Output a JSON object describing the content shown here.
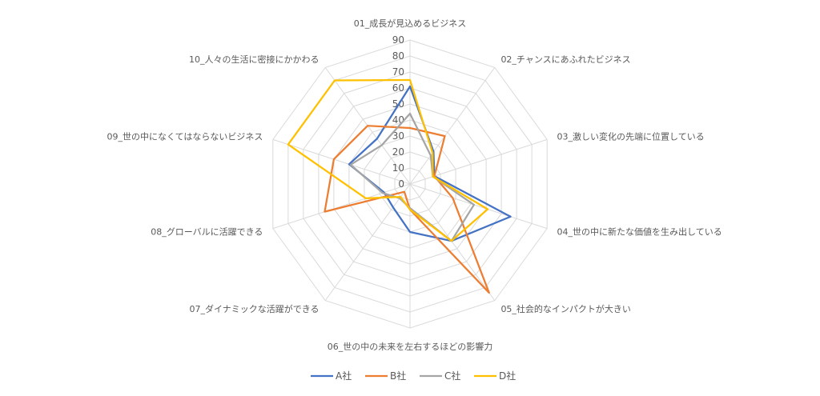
{
  "chart_data": {
    "type": "radar",
    "title": "",
    "categories": [
      "01_成長が見込めるビジネス",
      "02_チャンスにあふれたビジネス",
      "03_激しい変化の先端に位置している",
      "04_世の中に新たな価値を生み出している",
      "05_社会的なインパクトが大きい",
      "06_世の中の未来を左右するほどの影響力",
      "07_ダイナミックな活躍ができる",
      "08_グローバルに活躍できる",
      "09_世の中になくてはならないビジネス",
      "10_人々の生活に密接にかかわる"
    ],
    "ticks": [
      "0",
      "10",
      "20",
      "30",
      "40",
      "50",
      "60",
      "70",
      "80",
      "90"
    ],
    "rmax": 90,
    "grid": true,
    "legend_position": "bottom",
    "series": [
      {
        "name": "A社",
        "color": "#4472C4",
        "values": [
          61,
          25,
          16,
          66,
          44,
          30,
          18,
          17,
          40,
          35
        ]
      },
      {
        "name": "B社",
        "color": "#ED7D31",
        "values": [
          35,
          37,
          16,
          28,
          84,
          16,
          6,
          56,
          50,
          45
        ]
      },
      {
        "name": "C社",
        "color": "#A5A5A5",
        "values": [
          44,
          22,
          15,
          42,
          44,
          15,
          11,
          18,
          39,
          30
        ]
      },
      {
        "name": "D社",
        "color": "#FFC000",
        "values": [
          65,
          24,
          15,
          51,
          44,
          16,
          10,
          29,
          80,
          80
        ]
      }
    ]
  }
}
